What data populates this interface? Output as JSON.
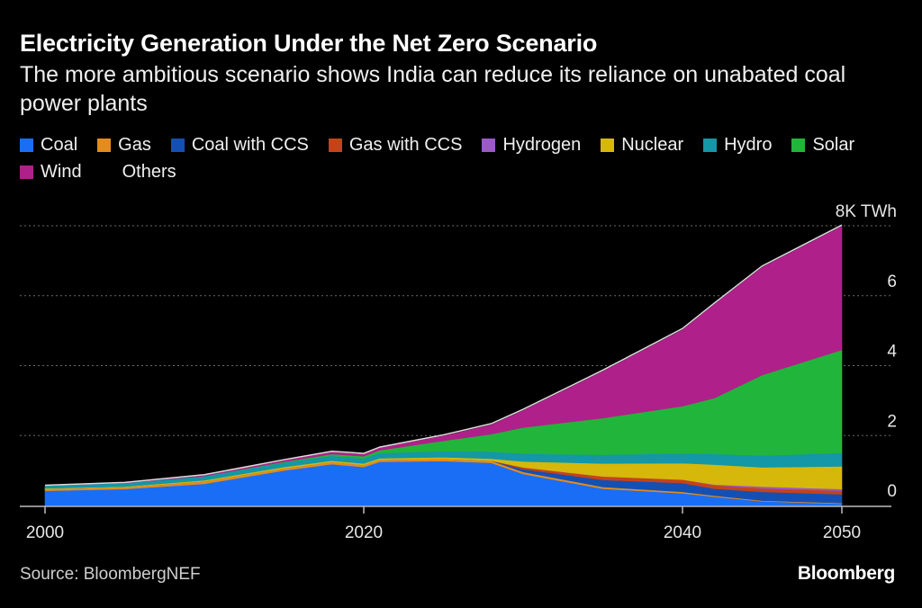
{
  "title": "Electricity Generation Under the Net Zero Scenario",
  "subtitle": "The more ambitious scenario shows India can reduce its reliance on unabated coal power plants",
  "source": "Source: BloombergNEF",
  "brand": "Bloomberg",
  "legend": [
    {
      "label": "Coal",
      "color": "#1a6ef5"
    },
    {
      "label": "Gas",
      "color": "#e38b1e"
    },
    {
      "label": "Coal with CCS",
      "color": "#1450b4"
    },
    {
      "label": "Gas with CCS",
      "color": "#c4431a"
    },
    {
      "label": "Hydrogen",
      "color": "#9b59c9"
    },
    {
      "label": "Nuclear",
      "color": "#d6b80a"
    },
    {
      "label": "Hydro",
      "color": "#1497a6"
    },
    {
      "label": "Solar",
      "color": "#22b53c"
    },
    {
      "label": "Wind",
      "color": "#b0208a"
    },
    {
      "label": "Others",
      "color": "#000000"
    }
  ],
  "chart_data": {
    "type": "area",
    "stacked": true,
    "x": [
      2000,
      2005,
      2010,
      2015,
      2018,
      2020,
      2021,
      2025,
      2028,
      2030,
      2035,
      2040,
      2042,
      2045,
      2050
    ],
    "series": [
      {
        "name": "Coal",
        "color": "#1a6ef5",
        "values": [
          0.42,
          0.47,
          0.62,
          1.0,
          1.18,
          1.1,
          1.25,
          1.27,
          1.22,
          0.9,
          0.48,
          0.35,
          0.25,
          0.12,
          0.05
        ]
      },
      {
        "name": "Gas",
        "color": "#e38b1e",
        "values": [
          0.05,
          0.05,
          0.07,
          0.06,
          0.06,
          0.06,
          0.06,
          0.06,
          0.06,
          0.06,
          0.05,
          0.04,
          0.03,
          0.02,
          0.02
        ]
      },
      {
        "name": "Coal with CCS",
        "color": "#1450b4",
        "values": [
          0,
          0,
          0,
          0,
          0,
          0,
          0,
          0,
          0,
          0.08,
          0.2,
          0.25,
          0.2,
          0.25,
          0.25
        ]
      },
      {
        "name": "Gas with CCS",
        "color": "#c4431a",
        "values": [
          0,
          0,
          0,
          0,
          0,
          0,
          0,
          0,
          0,
          0.05,
          0.1,
          0.1,
          0.1,
          0.1,
          0.1
        ]
      },
      {
        "name": "Hydrogen",
        "color": "#9b59c9",
        "values": [
          0,
          0,
          0,
          0,
          0,
          0,
          0,
          0,
          0,
          0,
          0,
          0,
          0.02,
          0.05,
          0.05
        ]
      },
      {
        "name": "Nuclear",
        "color": "#d6b80a",
        "values": [
          0.02,
          0.02,
          0.03,
          0.04,
          0.04,
          0.04,
          0.04,
          0.05,
          0.06,
          0.17,
          0.37,
          0.47,
          0.57,
          0.55,
          0.65
        ]
      },
      {
        "name": "Hydro",
        "color": "#1497a6",
        "values": [
          0.08,
          0.1,
          0.12,
          0.13,
          0.14,
          0.14,
          0.15,
          0.17,
          0.2,
          0.22,
          0.25,
          0.28,
          0.3,
          0.34,
          0.38
        ]
      },
      {
        "name": "Solar",
        "color": "#22b53c",
        "values": [
          0,
          0,
          0,
          0.02,
          0.05,
          0.07,
          0.08,
          0.3,
          0.5,
          0.75,
          1.05,
          1.35,
          1.6,
          2.3,
          2.95
        ]
      },
      {
        "name": "Wind",
        "color": "#b0208a",
        "values": [
          0,
          0.01,
          0.03,
          0.05,
          0.07,
          0.07,
          0.08,
          0.15,
          0.28,
          0.5,
          1.35,
          2.2,
          2.7,
          3.1,
          3.55
        ]
      },
      {
        "name": "Others",
        "color": "#000000",
        "values": [
          0.01,
          0.01,
          0.01,
          0.01,
          0.01,
          0.01,
          0.01,
          0.02,
          0.02,
          0.02,
          0.02,
          0.02,
          0.02,
          0.02,
          0.02
        ]
      }
    ],
    "xlim": [
      2000,
      2050
    ],
    "ylim": [
      0,
      8
    ],
    "y_ticks": [
      0,
      2,
      4,
      6,
      8
    ],
    "y_tick_labels": [
      "0",
      "2",
      "4",
      "6",
      "8K TWh"
    ],
    "x_ticks": [
      2000,
      2020,
      2040,
      2050
    ],
    "x_tick_labels": [
      "2000",
      "2020",
      "2040",
      "2050"
    ],
    "grid": true,
    "legend_position": "top-left"
  }
}
